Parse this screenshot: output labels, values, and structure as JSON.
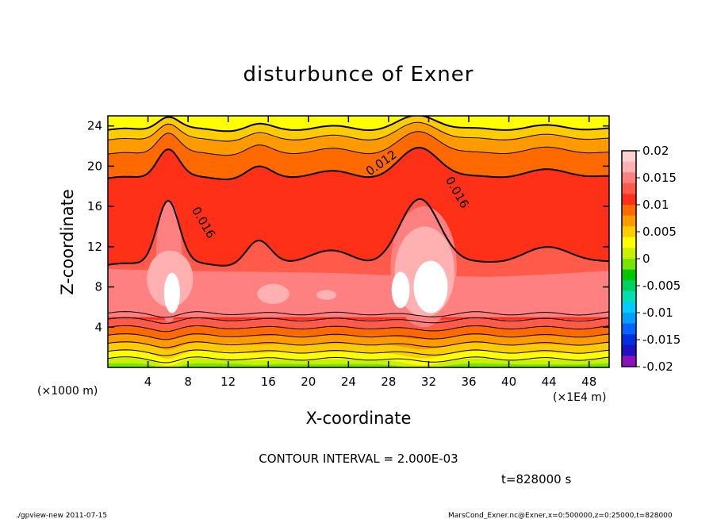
{
  "chart_data": {
    "type": "heatmap",
    "title": "disturbunce of Exner",
    "xlabel": "X-coordinate",
    "ylabel": "Z-coordinate",
    "x_unit_left": "(×1000 m)",
    "x_unit_right": "(×1E4 m)",
    "xlim": [
      0,
      50
    ],
    "ylim": [
      0,
      25
    ],
    "x_ticks": [
      4,
      8,
      12,
      16,
      20,
      24,
      28,
      32,
      36,
      40,
      44,
      48
    ],
    "y_ticks": [
      4,
      8,
      12,
      16,
      20,
      24
    ],
    "colorbar_ticks": [
      "0.02",
      "0.015",
      "0.01",
      "0.005",
      "0",
      "-0.005",
      "-0.01",
      "-0.015",
      "-0.02"
    ],
    "colorbar_range": [
      -0.02,
      0.02
    ],
    "contour_labels": [
      "0.012",
      "0.016",
      "0.016"
    ],
    "contour_interval": "CONTOUR INTERVAL = 2.000E-03",
    "time_label": "t=828000 s",
    "peaks": [
      {
        "x": 6,
        "z": 8
      },
      {
        "x": 31.5,
        "z": 8
      }
    ]
  },
  "footer": {
    "left": "./gpview-new   2011-07-15",
    "right": "MarsCond_Exner.nc@Exner,x=0:500000,z=0:25000,t=828000"
  },
  "colors": {
    "white": "#ffffff",
    "pink_light": "#ffb0b0",
    "pink": "#ff8080",
    "red_light": "#ff5a4a",
    "red": "#ff3018",
    "orange_red": "#ff6a00",
    "orange": "#ff9a00",
    "yellow_orange": "#ffcc00",
    "yellow": "#ffff00",
    "yellow_green": "#c8f000",
    "green_light": "#78e400",
    "green": "#00c800"
  }
}
